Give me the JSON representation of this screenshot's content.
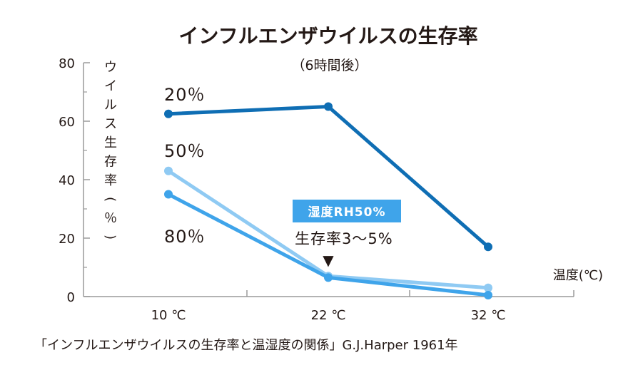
{
  "chart_data": {
    "type": "line",
    "title": "インフルエンザウイルスの生存率",
    "subtitle": "（6時間後）",
    "categories": [
      "10 ℃",
      "22 ℃",
      "32 ℃"
    ],
    "series": [
      {
        "name": "20%",
        "values": [
          62.5,
          65,
          17
        ],
        "color": "#0f6eb4"
      },
      {
        "name": "50%",
        "values": [
          43,
          7,
          3
        ],
        "color": "#8fcaf3"
      },
      {
        "name": "80%",
        "values": [
          35,
          6.5,
          0.5
        ],
        "color": "#3fa4ea"
      }
    ],
    "series_labels": [
      "20％",
      "50％",
      "80％"
    ],
    "xlabel": "温度(℃)",
    "ylabel": "ウイルス生存率(％)",
    "ylim": [
      0,
      80
    ],
    "yticks": [
      "0",
      "20",
      "40",
      "60",
      "80"
    ],
    "grid": false,
    "annotation": {
      "badge": "湿度RH50%",
      "badge_color": "#3fa4ea",
      "text": "生存率3～5%",
      "marker": "▼"
    },
    "source": "「インフルエンザウイルスの生存率と温湿度の関係」G.J.Harper 1961年"
  }
}
